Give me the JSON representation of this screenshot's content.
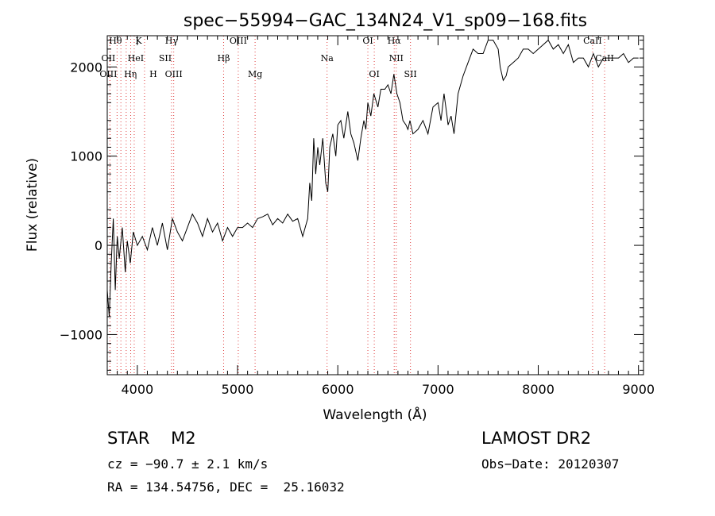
{
  "chart_data": {
    "type": "line",
    "title": "spec−55994−GAC_134N24_V1_sp09−168.fits",
    "xlabel": "Wavelength (Å)",
    "ylabel": "Flux (relative)",
    "xlim": [
      3700,
      9050
    ],
    "ylim": [
      -1450,
      2350
    ],
    "xticks": [
      4000,
      5000,
      6000,
      7000,
      8000,
      9000
    ],
    "yticks": [
      -1000,
      0,
      1000,
      2000
    ],
    "ytick_labels": [
      "−1000",
      "0",
      "1000",
      "2000"
    ],
    "grid": false,
    "series": [
      {
        "x": [
          3700,
          3720,
          3740,
          3760,
          3780,
          3800,
          3820,
          3850,
          3880,
          3900,
          3930,
          3960,
          4000,
          4050,
          4100,
          4150,
          4200,
          4250,
          4300,
          4350,
          4400,
          4450,
          4500,
          4550,
          4600,
          4650,
          4700,
          4750,
          4800,
          4850,
          4900,
          4950,
          5000,
          5050,
          5100,
          5150,
          5200,
          5250,
          5300,
          5350,
          5400,
          5450,
          5500,
          5550,
          5600,
          5650,
          5700,
          5720,
          5740,
          5760,
          5780,
          5800,
          5820,
          5850,
          5880,
          5900,
          5920,
          5950,
          5980,
          6000,
          6030,
          6060,
          6100,
          6130,
          6160,
          6190,
          6200,
          6230,
          6260,
          6280,
          6300,
          6330,
          6360,
          6400,
          6430,
          6470,
          6500,
          6530,
          6560,
          6590,
          6620,
          6650,
          6680,
          6700,
          6720,
          6750,
          6800,
          6850,
          6900,
          6950,
          7000,
          7030,
          7060,
          7090,
          7100,
          7130,
          7160,
          7200,
          7250,
          7300,
          7350,
          7400,
          7450,
          7500,
          7550,
          7600,
          7620,
          7650,
          7680,
          7700,
          7750,
          7800,
          7850,
          7900,
          7950,
          8000,
          8050,
          8100,
          8150,
          8200,
          8250,
          8300,
          8350,
          8400,
          8450,
          8500,
          8550,
          8600,
          8650,
          8700,
          8750,
          8800,
          8850,
          8900,
          8950,
          9000
        ],
        "values": [
          -500,
          -800,
          -200,
          300,
          -500,
          100,
          -150,
          200,
          -300,
          50,
          -200,
          150,
          0,
          100,
          -50,
          200,
          0,
          250,
          -50,
          300,
          150,
          50,
          200,
          350,
          250,
          100,
          300,
          150,
          250,
          50,
          200,
          100,
          200,
          200,
          250,
          200,
          300,
          320,
          350,
          230,
          300,
          250,
          350,
          270,
          300,
          100,
          300,
          700,
          500,
          1200,
          800,
          1100,
          900,
          1200,
          700,
          600,
          1100,
          1250,
          1000,
          1350,
          1400,
          1200,
          1500,
          1250,
          1150,
          1000,
          950,
          1200,
          1400,
          1300,
          1600,
          1450,
          1700,
          1550,
          1750,
          1750,
          1800,
          1700,
          1920,
          1700,
          1600,
          1400,
          1350,
          1300,
          1400,
          1250,
          1300,
          1400,
          1250,
          1550,
          1600,
          1400,
          1700,
          1450,
          1350,
          1450,
          1250,
          1700,
          1900,
          2050,
          2200,
          2150,
          2150,
          2300,
          2300,
          2200,
          2000,
          1850,
          1900,
          2000,
          2050,
          2100,
          2200,
          2200,
          2150,
          2200,
          2250,
          2300,
          2200,
          2250,
          2150,
          2250,
          2050,
          2100,
          2100,
          2000,
          2150,
          2000,
          2100,
          2100,
          2100,
          2100,
          2150,
          2050,
          2100,
          2100
        ]
      }
    ],
    "lines": [
      {
        "name": "Hθ",
        "x": 3798
      },
      {
        "name": "OII",
        "x": 3727
      },
      {
        "name": "OIII",
        "x": 3727
      },
      {
        "name": "Hη",
        "x": 3836
      },
      {
        "name": "HeI",
        "x": 3889
      },
      {
        "name": "SII",
        "x": 4072
      },
      {
        "name": "K",
        "x": 3934
      },
      {
        "name": "H",
        "x": 3969
      },
      {
        "name": "Hγ",
        "x": 4341
      },
      {
        "name": "OIII",
        "x": 4363
      },
      {
        "name": "Hβ",
        "x": 4861
      },
      {
        "name": "OIII",
        "x": 5007
      },
      {
        "name": "Mg",
        "x": 5175
      },
      {
        "name": "Na",
        "x": 5893
      },
      {
        "name": "OI",
        "x": 6300
      },
      {
        "name": "OI",
        "x": 6364
      },
      {
        "name": "Hα",
        "x": 6563
      },
      {
        "name": "NII",
        "x": 6583
      },
      {
        "name": "SII",
        "x": 6725
      },
      {
        "name": "CaII",
        "x": 8542
      },
      {
        "name": "CaII",
        "x": 8662
      }
    ]
  },
  "info": {
    "obj_class": "STAR    M2",
    "survey": "LAMOST DR2",
    "cz": "cz = −90.7 ± 2.1 km/s",
    "obs_date": "Obs−Date: 20120307",
    "radec": "RA = 134.54756, DEC =  25.16032"
  }
}
